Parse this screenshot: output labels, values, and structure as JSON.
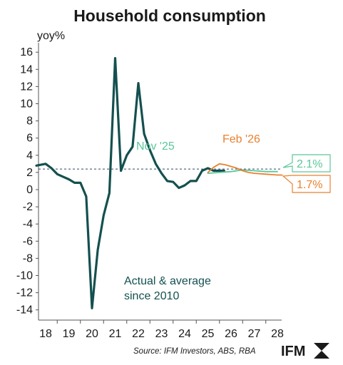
{
  "chart_data": {
    "type": "line",
    "title": "Household consumption",
    "ylabel": "yoy%",
    "ylim": [
      -15,
      17
    ],
    "xlim": [
      17.6,
      28.2
    ],
    "yticks": [
      16,
      14,
      12,
      10,
      8,
      6,
      4,
      2,
      0,
      -2,
      -4,
      -6,
      -8,
      -10,
      -12,
      -14
    ],
    "xticks": [
      "18",
      "19",
      "20",
      "21",
      "22",
      "23",
      "24",
      "25",
      "26",
      "27",
      "28"
    ],
    "average": {
      "name": "Actual & average since 2010",
      "value": 2.4
    },
    "series": [
      {
        "name": "Actual & average since 2010",
        "color": "#14504f",
        "x": [
          17.6,
          18.0,
          18.25,
          18.5,
          18.75,
          19.0,
          19.25,
          19.5,
          19.75,
          20.0,
          20.25,
          20.5,
          20.75,
          21.0,
          21.25,
          21.5,
          21.75,
          22.0,
          22.25,
          22.5,
          22.75,
          23.0,
          23.25,
          23.5,
          23.75,
          24.0,
          24.25,
          24.5,
          24.75,
          25.0,
          25.25,
          25.5,
          25.7
        ],
        "y": [
          2.8,
          3.0,
          2.5,
          1.8,
          1.5,
          1.2,
          0.8,
          0.8,
          -0.8,
          -13.8,
          -7.0,
          -3.0,
          -0.4,
          15.3,
          2.2,
          4.0,
          5.0,
          12.4,
          6.5,
          4.6,
          3.0,
          1.9,
          1.0,
          0.9,
          0.2,
          0.5,
          1.0,
          1.0,
          2.2,
          2.5,
          2.2,
          2.2,
          2.2
        ]
      },
      {
        "name": "Nov '25",
        "color": "#5cc79b",
        "x": [
          25.0,
          25.5,
          26.0,
          26.5,
          27.0,
          27.5,
          28.0
        ],
        "y": [
          1.9,
          2.0,
          2.1,
          2.3,
          2.2,
          2.1,
          2.1
        ]
      },
      {
        "name": "Feb '26",
        "color": "#e8812f",
        "x": [
          25.0,
          25.25,
          25.5,
          25.75,
          26.0,
          26.25,
          26.5,
          26.75,
          27.0,
          27.5,
          28.0,
          28.2
        ],
        "y": [
          2.0,
          2.6,
          3.0,
          2.9,
          2.7,
          2.5,
          2.2,
          2.0,
          1.9,
          1.8,
          1.7,
          1.7
        ]
      }
    ],
    "annotations": [
      {
        "text": "Nov '25",
        "color": "#5cc79b"
      },
      {
        "text": "Feb '26",
        "color": "#e8812f"
      },
      {
        "text": "Actual & average",
        "color": "#14504f"
      },
      {
        "text": "since 2010",
        "color": "#14504f"
      }
    ],
    "callouts": [
      {
        "text": "2.1%",
        "color": "#5cc79b"
      },
      {
        "text": "1.7%",
        "color": "#e8812f"
      }
    ]
  },
  "source": "Source: IFM Investors, ABS, RBA",
  "logo_text": "IFM"
}
